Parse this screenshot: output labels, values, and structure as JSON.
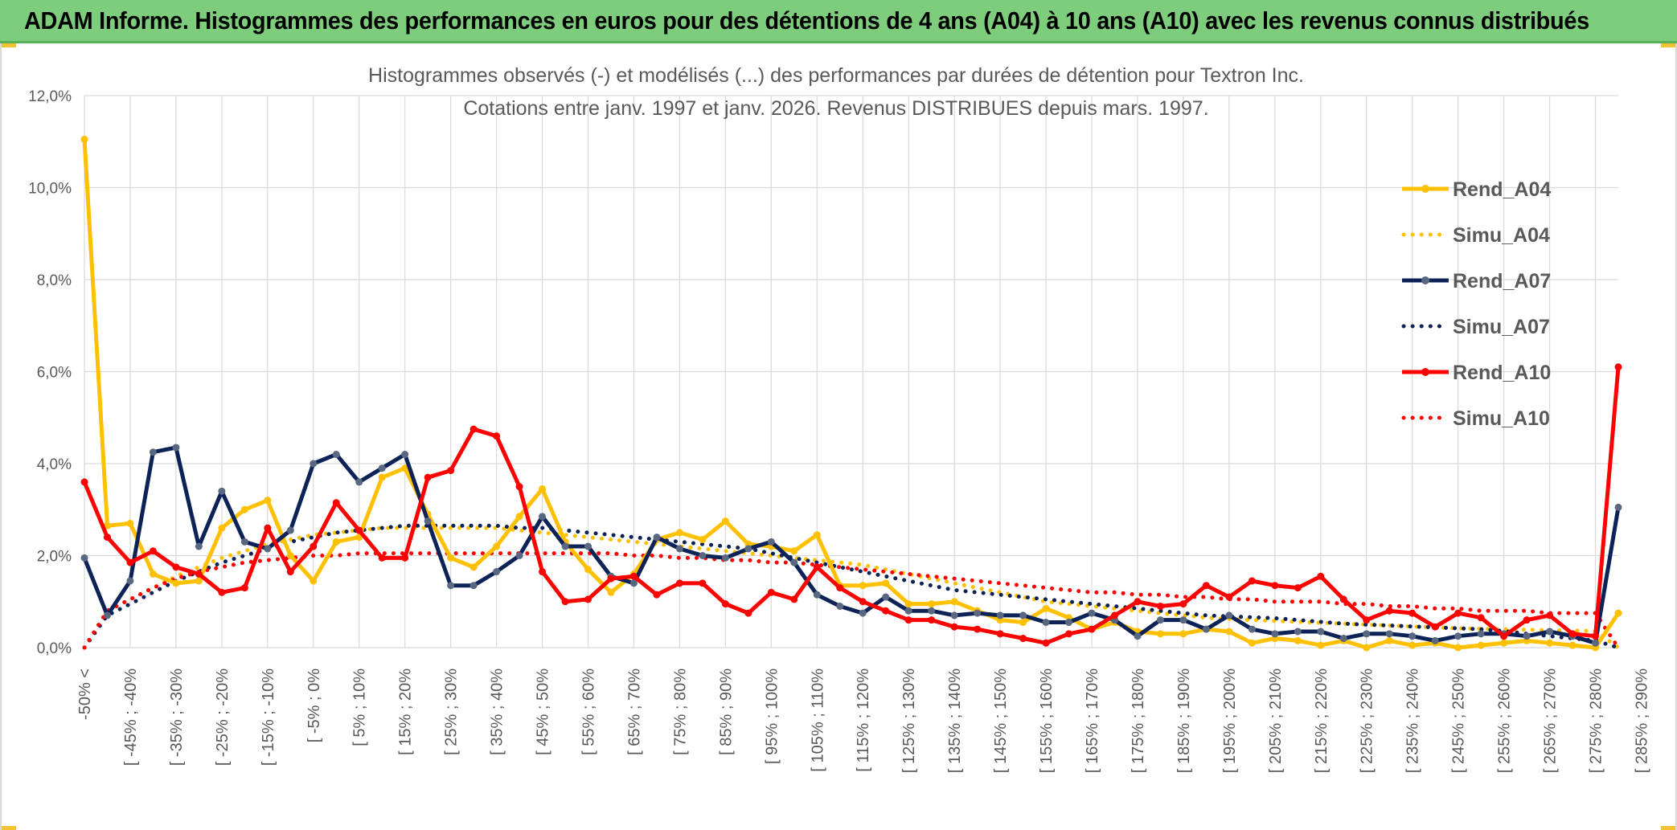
{
  "banner": {
    "title": "ADAM Informe. Histogrammes des performances en euros pour des détentions de 4 ans (A04) à 10 ans (A10) avec les revenus connus distribués"
  },
  "chart_data": {
    "type": "line",
    "title": "Histogrammes observés (-) et modélisés (...) des performances par durées de détention pour Textron Inc.",
    "subtitle": "Cotations entre janv. 1997 et janv. 2026. Revenus DISTRIBUES depuis mars. 1997.",
    "ylim": [
      0,
      12
    ],
    "yticks": [
      "0,0%",
      "2,0%",
      "4,0%",
      "6,0%",
      "8,0%",
      "10,0%",
      "12,0%"
    ],
    "grid": true,
    "legend_position": "right",
    "x_tick_labels": [
      "-50% <",
      "[ -45% ; -40%",
      "[ -35% ; -30%",
      "[ -25% ; -20%",
      "[ -15% ; -10%",
      "[ -5% ; 0%",
      "[ 5% ; 10%",
      "[ 15% ; 20%",
      "[ 25% ; 30%",
      "[ 35% ; 40%",
      "[ 45% ; 50%",
      "[ 55% ; 60%",
      "[ 65% ; 70%",
      "[ 75% ; 80%",
      "[ 85% ; 90%",
      "[ 95% ; 100%",
      "[ 105% ; 110%",
      "[ 115% ; 120%",
      "[ 125% ; 130%",
      "[ 135% ; 140%",
      "[ 145% ; 150%",
      "[ 155% ; 160%",
      "[ 165% ; 170%",
      "[ 175% ; 180%",
      "[ 185% ; 190%",
      "[ 195% ; 200%",
      "[ 205% ; 210%",
      "[ 215% ; 220%",
      "[ 225% ; 230%",
      "[ 235% ; 240%",
      "[ 245% ; 250%",
      "[ 255% ; 260%",
      "[ 265% ; 270%",
      "[ 275% ; 280%",
      "[ 285% ; 290%"
    ],
    "series": [
      {
        "name": "Rend_A04",
        "style": "solid",
        "color": "#ffc000",
        "values": [
          11.05,
          2.65,
          2.7,
          1.6,
          1.4,
          1.45,
          2.6,
          3.0,
          3.2,
          2.0,
          1.45,
          2.3,
          2.4,
          3.7,
          3.9,
          2.9,
          1.95,
          1.75,
          2.2,
          2.85,
          3.45,
          2.3,
          1.7,
          1.2,
          1.6,
          2.35,
          2.5,
          2.35,
          2.75,
          2.25,
          2.2,
          2.1,
          2.45,
          1.35,
          1.35,
          1.4,
          0.95,
          0.95,
          1.0,
          0.8,
          0.6,
          0.55,
          0.85,
          0.65,
          0.4,
          0.55,
          0.35,
          0.3,
          0.3,
          0.4,
          0.35,
          0.1,
          0.2,
          0.15,
          0.05,
          0.15,
          0.0,
          0.15,
          0.05,
          0.1,
          0.0,
          0.05,
          0.1,
          0.15,
          0.1,
          0.05,
          0.0,
          0.75
        ]
      },
      {
        "name": "Simu_A04",
        "style": "dotted",
        "color": "#ffc000",
        "values": [
          0.0,
          0.8,
          1.05,
          1.3,
          1.55,
          1.75,
          1.95,
          2.1,
          2.25,
          2.35,
          2.45,
          2.5,
          2.55,
          2.6,
          2.6,
          2.6,
          2.6,
          2.6,
          2.6,
          2.55,
          2.5,
          2.45,
          2.4,
          2.35,
          2.3,
          2.25,
          2.2,
          2.15,
          2.1,
          2.05,
          2.0,
          1.95,
          1.9,
          1.85,
          1.8,
          1.7,
          1.6,
          1.5,
          1.4,
          1.3,
          1.2,
          1.1,
          1.0,
          0.95,
          0.9,
          0.85,
          0.8,
          0.75,
          0.7,
          0.65,
          0.62,
          0.6,
          0.58,
          0.56,
          0.54,
          0.52,
          0.5,
          0.48,
          0.46,
          0.44,
          0.42,
          0.41,
          0.4,
          0.39,
          0.38,
          0.37,
          0.36,
          0.0
        ]
      },
      {
        "name": "Rend_A07",
        "style": "solid",
        "color": "#0d2357",
        "values": [
          1.95,
          0.7,
          1.45,
          4.25,
          4.35,
          2.2,
          3.4,
          2.3,
          2.15,
          2.55,
          4.0,
          4.2,
          3.6,
          3.9,
          4.2,
          2.75,
          1.35,
          1.35,
          1.65,
          2.0,
          2.85,
          2.2,
          2.2,
          1.55,
          1.4,
          2.4,
          2.15,
          2.0,
          1.95,
          2.15,
          2.3,
          1.85,
          1.15,
          0.9,
          0.75,
          1.1,
          0.8,
          0.8,
          0.7,
          0.75,
          0.7,
          0.7,
          0.55,
          0.55,
          0.75,
          0.6,
          0.25,
          0.6,
          0.6,
          0.4,
          0.7,
          0.4,
          0.3,
          0.35,
          0.35,
          0.2,
          0.3,
          0.3,
          0.25,
          0.15,
          0.25,
          0.3,
          0.3,
          0.25,
          0.35,
          0.25,
          0.1,
          3.05
        ]
      },
      {
        "name": "Simu_A07",
        "style": "dotted",
        "color": "#0d2357",
        "values": [
          0.0,
          0.7,
          0.95,
          1.2,
          1.45,
          1.65,
          1.85,
          2.0,
          2.15,
          2.3,
          2.4,
          2.5,
          2.55,
          2.6,
          2.65,
          2.65,
          2.65,
          2.65,
          2.65,
          2.6,
          2.6,
          2.55,
          2.5,
          2.45,
          2.4,
          2.35,
          2.3,
          2.25,
          2.2,
          2.15,
          2.05,
          1.95,
          1.85,
          1.75,
          1.65,
          1.55,
          1.45,
          1.35,
          1.25,
          1.2,
          1.15,
          1.1,
          1.05,
          1.0,
          0.95,
          0.9,
          0.85,
          0.8,
          0.75,
          0.7,
          0.68,
          0.66,
          0.64,
          0.6,
          0.56,
          0.52,
          0.5,
          0.48,
          0.46,
          0.44,
          0.42,
          0.4,
          0.36,
          0.3,
          0.25,
          0.2,
          0.15,
          0.0
        ]
      },
      {
        "name": "Rend_A10",
        "style": "solid",
        "color": "#ff0000",
        "values": [
          3.6,
          2.4,
          1.85,
          2.1,
          1.75,
          1.6,
          1.2,
          1.3,
          2.6,
          1.65,
          2.2,
          3.15,
          2.55,
          1.95,
          1.95,
          3.7,
          3.85,
          4.75,
          4.6,
          3.5,
          1.65,
          1.0,
          1.05,
          1.5,
          1.55,
          1.15,
          1.4,
          1.4,
          0.95,
          0.75,
          1.2,
          1.05,
          1.75,
          1.3,
          1.0,
          0.8,
          0.6,
          0.6,
          0.45,
          0.4,
          0.3,
          0.2,
          0.1,
          0.3,
          0.4,
          0.7,
          1.0,
          0.9,
          0.95,
          1.35,
          1.1,
          1.45,
          1.35,
          1.3,
          1.55,
          1.05,
          0.6,
          0.8,
          0.75,
          0.45,
          0.75,
          0.65,
          0.25,
          0.6,
          0.7,
          0.3,
          0.25,
          6.1
        ]
      },
      {
        "name": "Simu_A10",
        "style": "dotted",
        "color": "#ff0000",
        "values": [
          0.0,
          0.8,
          1.05,
          1.3,
          1.5,
          1.65,
          1.75,
          1.85,
          1.9,
          1.95,
          2.0,
          2.0,
          2.05,
          2.05,
          2.05,
          2.05,
          2.05,
          2.05,
          2.05,
          2.05,
          2.05,
          2.05,
          2.05,
          2.05,
          2.0,
          2.0,
          1.95,
          1.95,
          1.9,
          1.9,
          1.85,
          1.85,
          1.8,
          1.75,
          1.7,
          1.65,
          1.6,
          1.55,
          1.5,
          1.45,
          1.4,
          1.35,
          1.3,
          1.25,
          1.2,
          1.2,
          1.15,
          1.15,
          1.1,
          1.1,
          1.05,
          1.05,
          1.0,
          1.0,
          1.0,
          0.95,
          0.95,
          0.9,
          0.9,
          0.85,
          0.85,
          0.8,
          0.8,
          0.8,
          0.75,
          0.75,
          0.75,
          0.0
        ]
      }
    ]
  }
}
